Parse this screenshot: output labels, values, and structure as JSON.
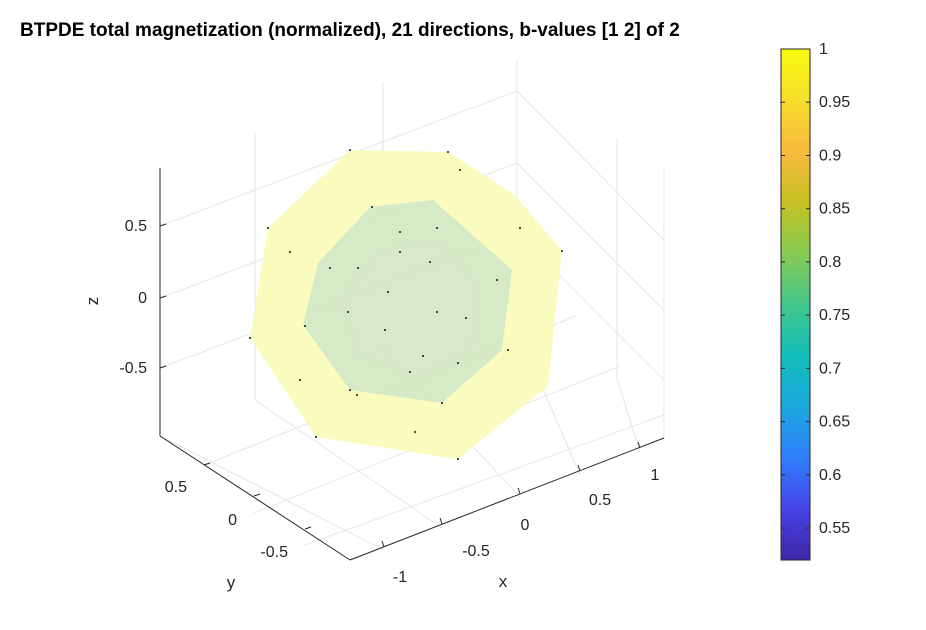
{
  "chart_data": {
    "type": "3d-surface",
    "title": "BTPDE total magnetization (normalized), 21 directions, b-values [1 2] of 2",
    "xlabel": "x",
    "ylabel": "y",
    "zlabel": "z",
    "x_ticks": [
      "-1",
      "-0.5",
      "0",
      "0.5",
      "1"
    ],
    "y_ticks": [
      "-0.5",
      "0",
      "0.5"
    ],
    "z_ticks": [
      "-0.5",
      "0",
      "0.5"
    ],
    "grid": true,
    "colorbar": {
      "ticks": [
        "1",
        "0.95",
        "0.9",
        "0.85",
        "0.8",
        "0.75",
        "0.7",
        "0.65",
        "0.6",
        "0.55"
      ],
      "range": [
        0.52,
        1.0
      ],
      "colormap": [
        "#3e26a8",
        "#4743e6",
        "#2f7ffc",
        "#1ca8de",
        "#12beb9",
        "#44c68c",
        "#88cb52",
        "#c5c022",
        "#f8ba3d",
        "#f6dd2b",
        "#f9fb0e"
      ]
    },
    "surfaces": [
      {
        "b_value": 1,
        "magnetization": 0.99,
        "color": "#f9fbb4"
      },
      {
        "b_value": 2,
        "magnetization": 0.82,
        "color": "#cfe6c8"
      }
    ],
    "directions": 21
  }
}
